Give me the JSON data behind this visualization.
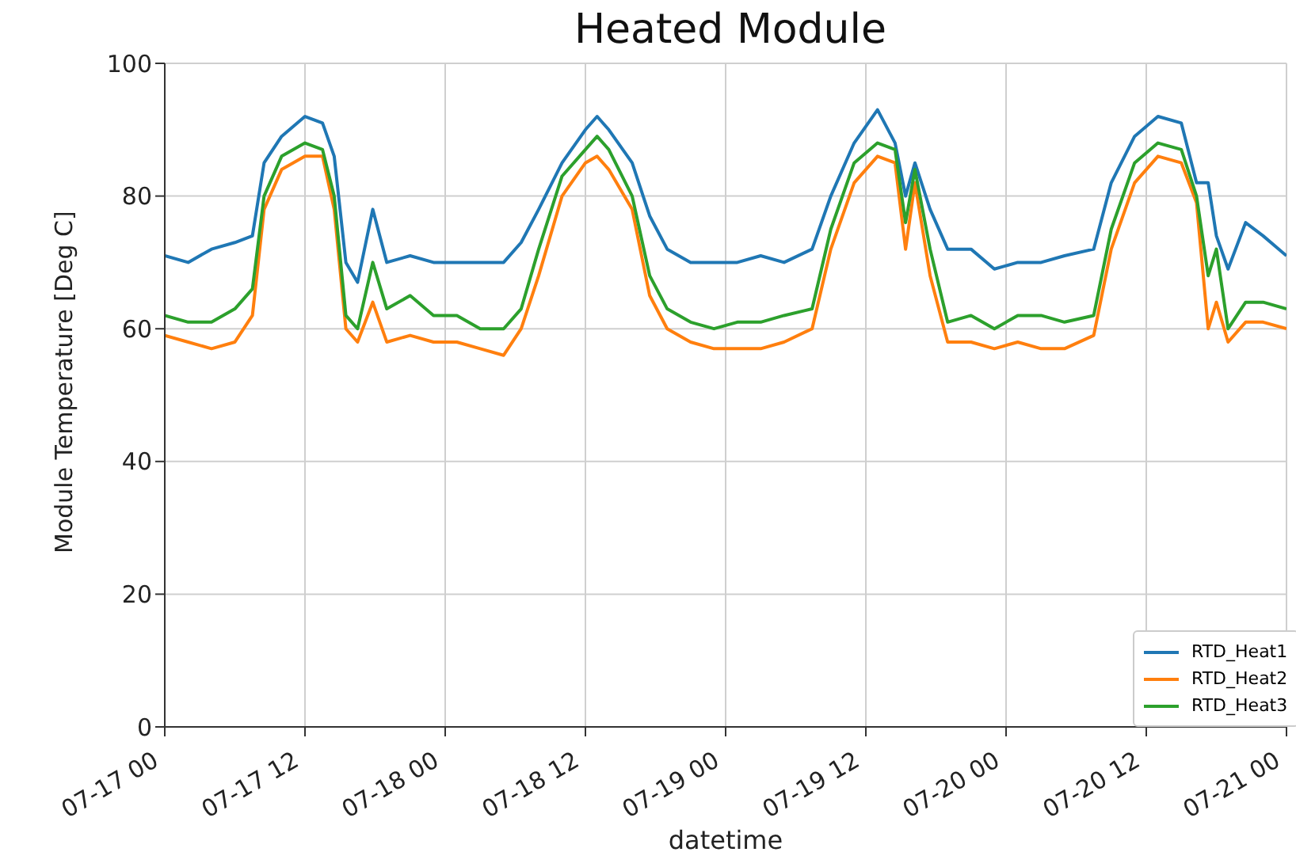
{
  "chart_data": {
    "type": "line",
    "title": "Heated Module",
    "xlabel": "datetime",
    "ylabel": "Module Temperature [Deg C]",
    "x": [
      "--07-17T00:00",
      "--07-17T02:00",
      "--07-17T04:00",
      "--07-17T06:00",
      "--07-17T07:30",
      "--07-17T08:30",
      "--07-17T10:00",
      "--07-17T12:00",
      "--07-17T13:30",
      "--07-17T14:30",
      "--07-17T15:30",
      "--07-17T16:30",
      "--07-17T17:48",
      "--07-17T19:00",
      "--07-17T21:00",
      "--07-17T23:00",
      "--07-18T01:00",
      "--07-18T03:00",
      "--07-18T05:00",
      "--07-18T06:30",
      "--07-18T08:00",
      "--07-18T10:00",
      "--07-18T12:00",
      "--07-18T13:00",
      "--07-18T14:00",
      "--07-18T16:00",
      "--07-18T17:30",
      "--07-18T19:00",
      "--07-18T21:00",
      "--07-18T23:00",
      "--07-19T01:00",
      "--07-19T03:00",
      "--07-19T05:00",
      "--07-19T07:24",
      "--07-19T09:00",
      "--07-19T11:00",
      "--07-19T13:00",
      "--07-19T14:30",
      "--07-19T15:24",
      "--07-19T16:12",
      "--07-19T17:30",
      "--07-19T19:00",
      "--07-19T21:00",
      "--07-19T23:00",
      "--07-20T01:00",
      "--07-20T03:00",
      "--07-20T05:00",
      "--07-20T07:30",
      "--07-20T09:00",
      "--07-20T11:00",
      "--07-20T13:00",
      "--07-20T15:00",
      "--07-20T16:18",
      "--07-20T17:18",
      "--07-20T18:00",
      "--07-20T19:00",
      "--07-20T20:30",
      "--07-20T22:00",
      "--07-21T00:00"
    ],
    "series": [
      {
        "name": "RTD_Heat1",
        "color": "#1f77b4",
        "values": [
          71,
          70,
          72,
          73,
          74,
          85,
          89,
          92,
          91,
          86,
          70,
          67,
          78,
          70,
          71,
          70,
          70,
          70,
          70,
          73,
          78,
          85,
          90,
          92,
          90,
          85,
          77,
          72,
          70,
          70,
          70,
          71,
          70,
          72,
          80,
          88,
          93,
          88,
          80,
          85,
          78,
          72,
          72,
          69,
          70,
          70,
          71,
          72,
          82,
          89,
          92,
          91,
          82,
          82,
          74,
          69,
          76,
          74,
          71
        ]
      },
      {
        "name": "RTD_Heat2",
        "color": "#ff7f0e",
        "values": [
          59,
          58,
          57,
          58,
          62,
          78,
          84,
          86,
          86,
          78,
          60,
          58,
          64,
          58,
          59,
          58,
          58,
          57,
          56,
          60,
          68,
          80,
          85,
          86,
          84,
          78,
          65,
          60,
          58,
          57,
          57,
          57,
          58,
          60,
          72,
          82,
          86,
          85,
          72,
          82,
          68,
          58,
          58,
          57,
          58,
          57,
          57,
          59,
          72,
          82,
          86,
          85,
          79,
          60,
          64,
          58,
          61,
          61,
          60
        ]
      },
      {
        "name": "RTD_Heat3",
        "color": "#2ca02c",
        "values": [
          62,
          61,
          61,
          63,
          66,
          80,
          86,
          88,
          87,
          80,
          62,
          60,
          70,
          63,
          65,
          62,
          62,
          60,
          60,
          63,
          72,
          83,
          87,
          89,
          87,
          80,
          68,
          63,
          61,
          60,
          61,
          61,
          62,
          63,
          75,
          85,
          88,
          87,
          76,
          84,
          72,
          61,
          62,
          60,
          62,
          62,
          61,
          62,
          75,
          85,
          88,
          87,
          80,
          68,
          72,
          60,
          64,
          64,
          63
        ]
      }
    ],
    "xlim": [
      "--07-17T00:00",
      "--07-21T00:00"
    ],
    "xticks": [
      {
        "value": "--07-17T00:00",
        "label": "07-17 00"
      },
      {
        "value": "--07-17T12:00",
        "label": "07-17 12"
      },
      {
        "value": "--07-18T00:00",
        "label": "07-18 00"
      },
      {
        "value": "--07-18T12:00",
        "label": "07-18 12"
      },
      {
        "value": "--07-19T00:00",
        "label": "07-19 00"
      },
      {
        "value": "--07-19T12:00",
        "label": "07-19 12"
      },
      {
        "value": "--07-20T00:00",
        "label": "07-20 00"
      },
      {
        "value": "--07-20T12:00",
        "label": "07-20 12"
      },
      {
        "value": "--07-21T00:00",
        "label": "07-21 00"
      }
    ],
    "ylim": [
      0,
      100
    ],
    "yticks": [
      0,
      20,
      40,
      60,
      80,
      100
    ],
    "grid": true,
    "legend": "bottom right",
    "marker": "none",
    "line_style": "solid"
  }
}
